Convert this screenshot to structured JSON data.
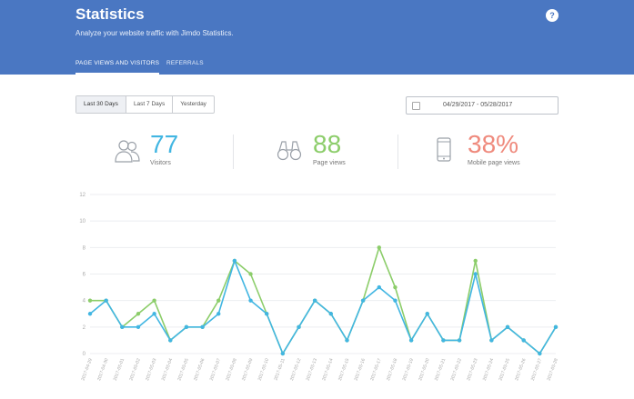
{
  "header": {
    "title": "Statistics",
    "subtitle": "Analyze your website traffic with Jimdo Statistics.",
    "help_label": "?",
    "tabs": [
      {
        "label": "PAGE VIEWS AND VISITORS"
      },
      {
        "label": "REFERRALS"
      }
    ]
  },
  "range_buttons": [
    {
      "label": "Last 30 Days"
    },
    {
      "label": "Last 7 Days"
    },
    {
      "label": "Yesterday"
    }
  ],
  "date_range": "04/29/2017 - 05/28/2017",
  "stats": [
    {
      "value": "77",
      "label": "Visitors",
      "color": "#42b6e2",
      "icon": "users-icon"
    },
    {
      "value": "88",
      "label": "Page views",
      "color": "#8ccd6a",
      "icon": "binoculars-icon"
    },
    {
      "value": "38%",
      "label": "Mobile page views",
      "color": "#ef8a7d",
      "icon": "mobile-icon"
    }
  ],
  "chart_data": {
    "type": "line",
    "ylim": [
      0,
      12
    ],
    "yticks": [
      "0",
      "2",
      "4",
      "6",
      "8",
      "10",
      "12"
    ],
    "categories": [
      "2017-04-29",
      "2017-04-30",
      "2017-05-01",
      "2017-05-02",
      "2017-05-03",
      "2017-05-04",
      "2017-05-05",
      "2017-05-06",
      "2017-05-07",
      "2017-05-08",
      "2017-05-09",
      "2017-05-10",
      "2017-05-11",
      "2017-05-12",
      "2017-05-13",
      "2017-05-14",
      "2017-05-15",
      "2017-05-16",
      "2017-05-17",
      "2017-05-18",
      "2017-05-19",
      "2017-05-20",
      "2017-05-21",
      "2017-05-22",
      "2017-05-23",
      "2017-05-24",
      "2017-05-25",
      "2017-05-26",
      "2017-05-27",
      "2017-05-28"
    ],
    "series": [
      {
        "values": [
          4,
          4,
          2,
          3,
          4,
          1,
          2,
          2,
          4,
          7,
          6,
          3,
          0,
          2,
          4,
          3,
          1,
          4,
          8,
          5,
          1,
          3,
          1,
          1,
          7,
          1,
          2,
          1,
          0,
          2
        ],
        "color": "#8ccd6a"
      },
      {
        "values": [
          3,
          4,
          2,
          2,
          3,
          1,
          2,
          2,
          3,
          7,
          4,
          3,
          0,
          2,
          4,
          3,
          1,
          4,
          5,
          4,
          1,
          3,
          1,
          1,
          6,
          1,
          2,
          1,
          0,
          2
        ],
        "color": "#42b6e2"
      }
    ]
  }
}
